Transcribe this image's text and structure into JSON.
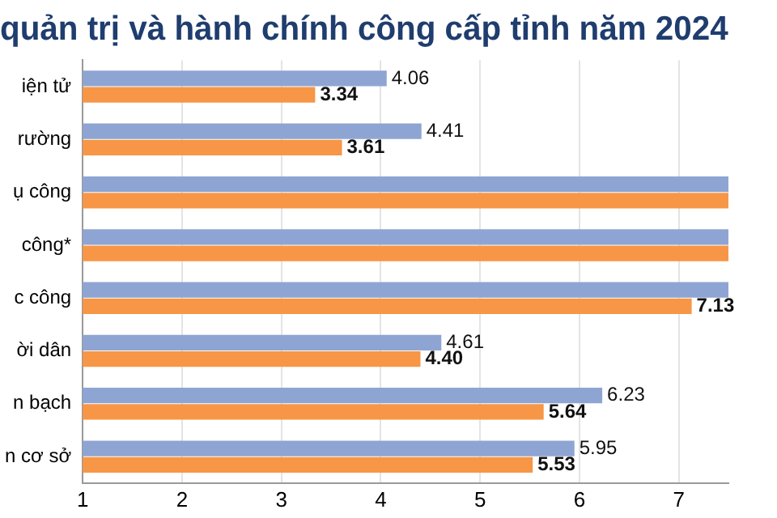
{
  "chart_data": {
    "type": "bar",
    "orientation": "horizontal",
    "title": "quản trị và hành chính công cấp tỉnh năm 2024",
    "categories": [
      "iện tử",
      "rường",
      "ụ công",
      "công*",
      "c công",
      "ời dân",
      "n bạch",
      "n cơ sở"
    ],
    "series": [
      {
        "color": "#8ea5d3",
        "values": [
          4.06,
          4.41,
          7.5,
          7.5,
          7.5,
          4.61,
          6.23,
          5.95
        ],
        "value_labels": [
          "4.06",
          "4.41",
          null,
          null,
          null,
          "4.61",
          "6.23",
          "5.95"
        ]
      },
      {
        "color": "#f79646",
        "values": [
          3.34,
          3.61,
          7.5,
          7.5,
          7.13,
          4.4,
          5.64,
          5.53
        ],
        "value_labels": [
          "3.34",
          "3.61",
          null,
          null,
          "7.13",
          "4.40",
          "5.64",
          "5.53"
        ]
      }
    ],
    "xlim": [
      1,
      7.5
    ],
    "xticks": [
      1,
      2,
      3,
      4,
      5,
      6,
      7
    ],
    "grid": "x",
    "legend": false
  }
}
